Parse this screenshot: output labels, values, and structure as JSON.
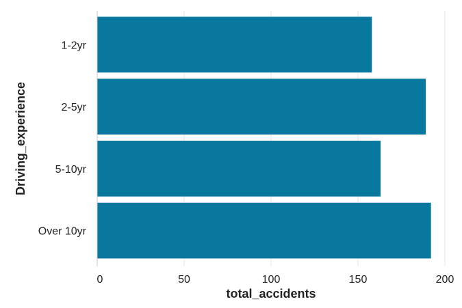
{
  "chart_data": {
    "type": "bar",
    "orientation": "horizontal",
    "categories": [
      "1-2yr",
      "2-5yr",
      "5-10yr",
      "Over 10yr"
    ],
    "values": [
      158,
      189,
      163,
      192
    ],
    "xlabel": "total_accidents",
    "ylabel": "Driving_experience",
    "xlim": [
      0,
      200
    ],
    "x_ticks": [
      0,
      50,
      100,
      150,
      200
    ],
    "x_tick_labels": [
      "0",
      "50",
      "100",
      "150",
      "200"
    ],
    "grid": "vertical",
    "bar_color": "#08789e",
    "grid_color": "#e6e6e6",
    "axis_color": "#c8c8c8"
  }
}
